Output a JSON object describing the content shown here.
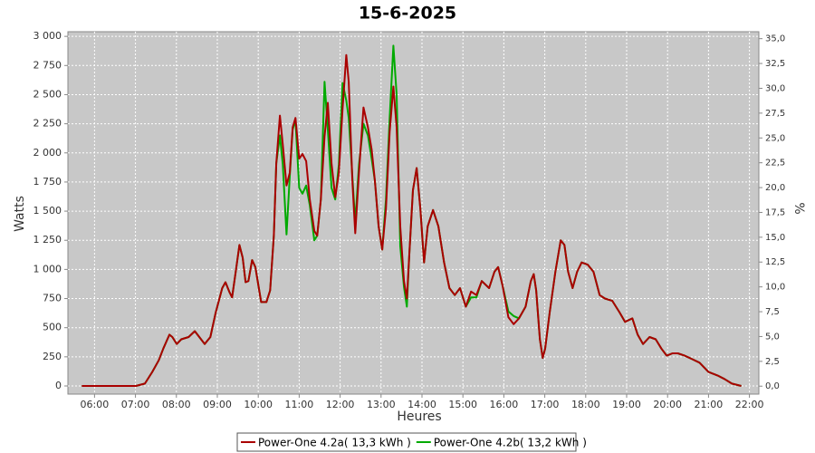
{
  "chart_data": {
    "type": "line",
    "title": "15-6-2025",
    "xlabel": "Heures",
    "ylabel": "Watts",
    "y2label": "%",
    "xlim": [
      5.35,
      22.23
    ],
    "ylim": [
      -70,
      3040
    ],
    "y2lim": [
      -0.8,
      35.7
    ],
    "xticks": [
      {
        "value": 6,
        "label": "06:00"
      },
      {
        "value": 7,
        "label": "07:00"
      },
      {
        "value": 8,
        "label": "08:00"
      },
      {
        "value": 9,
        "label": "09:00"
      },
      {
        "value": 10,
        "label": "10:00"
      },
      {
        "value": 11,
        "label": "11:00"
      },
      {
        "value": 12,
        "label": "12:00"
      },
      {
        "value": 13,
        "label": "13:00"
      },
      {
        "value": 14,
        "label": "14:00"
      },
      {
        "value": 15,
        "label": "15:00"
      },
      {
        "value": 16,
        "label": "16:00"
      },
      {
        "value": 17,
        "label": "17:00"
      },
      {
        "value": 18,
        "label": "18:00"
      },
      {
        "value": 19,
        "label": "19:00"
      },
      {
        "value": 20,
        "label": "20:00"
      },
      {
        "value": 21,
        "label": "21:00"
      },
      {
        "value": 22,
        "label": "22:00"
      }
    ],
    "yticks": [
      0,
      250,
      500,
      750,
      {
        "value": 1000,
        "label": "1 000"
      },
      {
        "value": 1250,
        "label": "1 250"
      },
      {
        "value": 1500,
        "label": "1 500"
      },
      {
        "value": 1750,
        "label": "1 750"
      },
      {
        "value": 2000,
        "label": "2 000"
      },
      {
        "value": 2250,
        "label": "2 250"
      },
      {
        "value": 2500,
        "label": "2 500"
      },
      {
        "value": 2750,
        "label": "2 750"
      },
      {
        "value": 3000,
        "label": "3 000"
      }
    ],
    "y2ticks": [
      {
        "value": 0,
        "label": "0,0"
      },
      {
        "value": 2.5,
        "label": "2,5"
      },
      {
        "value": 5,
        "label": "5,0"
      },
      {
        "value": 7.5,
        "label": "7,5"
      },
      {
        "value": 10,
        "label": "10,0"
      },
      {
        "value": 12.5,
        "label": "12,5"
      },
      {
        "value": 15,
        "label": "15,0"
      },
      {
        "value": 17.5,
        "label": "17,5"
      },
      {
        "value": 20,
        "label": "20,0"
      },
      {
        "value": 22.5,
        "label": "22,5"
      },
      {
        "value": 25,
        "label": "25,0"
      },
      {
        "value": 27.5,
        "label": "27,5"
      },
      {
        "value": 30,
        "label": "30,0"
      },
      {
        "value": 32.5,
        "label": "32,5"
      },
      {
        "value": 35,
        "label": "35,0"
      }
    ],
    "grid": true,
    "legend": "bottom",
    "x": [
      5.69,
      7.01,
      7.23,
      7.41,
      7.57,
      7.68,
      7.83,
      7.9,
      8.01,
      8.12,
      8.3,
      8.45,
      8.56,
      8.69,
      8.83,
      8.96,
      9.12,
      9.2,
      9.29,
      9.36,
      9.45,
      9.54,
      9.62,
      9.69,
      9.76,
      9.85,
      9.93,
      10.07,
      10.2,
      10.29,
      10.38,
      10.44,
      10.53,
      10.6,
      10.69,
      10.77,
      10.84,
      10.91,
      11.0,
      11.08,
      11.17,
      11.26,
      11.37,
      11.44,
      11.53,
      11.62,
      11.7,
      11.79,
      11.88,
      11.97,
      12.06,
      12.15,
      12.21,
      12.3,
      12.37,
      12.46,
      12.57,
      12.68,
      12.77,
      12.85,
      12.94,
      13.03,
      13.12,
      13.21,
      13.3,
      13.38,
      13.47,
      13.56,
      13.63,
      13.69,
      13.78,
      13.87,
      13.96,
      14.05,
      14.14,
      14.27,
      14.4,
      14.54,
      14.67,
      14.8,
      14.93,
      15.07,
      15.2,
      15.33,
      15.46,
      15.64,
      15.77,
      15.86,
      15.97,
      16.11,
      16.24,
      16.37,
      16.53,
      16.66,
      16.73,
      16.79,
      16.88,
      16.95,
      17.01,
      17.12,
      17.26,
      17.39,
      17.48,
      17.57,
      17.68,
      17.79,
      17.9,
      18.05,
      18.19,
      18.34,
      18.47,
      18.65,
      18.83,
      18.96,
      19.14,
      19.27,
      19.4,
      19.56,
      19.71,
      19.85,
      19.98,
      20.12,
      20.25,
      20.42,
      20.6,
      20.78,
      21.0,
      21.22,
      21.39,
      21.57,
      21.8
    ],
    "series": [
      {
        "name": "Power-One 4.2a( 13,3 kWh )",
        "color": "#aa0000",
        "values": [
          0,
          0,
          20,
          120,
          220,
          320,
          440,
          420,
          360,
          400,
          420,
          470,
          420,
          360,
          420,
          630,
          840,
          890,
          810,
          760,
          980,
          1210,
          1100,
          890,
          900,
          1080,
          1020,
          720,
          720,
          820,
          1290,
          1910,
          2320,
          2070,
          1720,
          1830,
          2220,
          2300,
          1950,
          1990,
          1930,
          1600,
          1330,
          1290,
          1600,
          2140,
          2430,
          1910,
          1620,
          1830,
          2380,
          2840,
          2610,
          1760,
          1310,
          1830,
          2390,
          2220,
          2030,
          1760,
          1370,
          1170,
          1520,
          2180,
          2570,
          2220,
          1370,
          900,
          750,
          1130,
          1680,
          1870,
          1520,
          1060,
          1370,
          1510,
          1370,
          1060,
          840,
          780,
          840,
          680,
          810,
          780,
          900,
          840,
          980,
          1020,
          860,
          590,
          530,
          580,
          680,
          900,
          960,
          820,
          400,
          240,
          320,
          630,
          980,
          1250,
          1210,
          980,
          840,
          980,
          1060,
          1040,
          980,
          780,
          750,
          730,
          630,
          550,
          580,
          440,
          360,
          420,
          400,
          320,
          260,
          280,
          280,
          260,
          230,
          200,
          120,
          90,
          60,
          20,
          0
        ]
      },
      {
        "name": "Power-One 4.2b( 13,2 kWh )",
        "color": "#00aa00",
        "values": [
          0,
          0,
          20,
          120,
          220,
          320,
          440,
          420,
          360,
          400,
          420,
          470,
          420,
          360,
          420,
          630,
          840,
          890,
          810,
          760,
          980,
          1210,
          1100,
          890,
          900,
          1080,
          1020,
          720,
          720,
          820,
          1290,
          1910,
          2150,
          1900,
          1300,
          1800,
          2200,
          2280,
          1700,
          1650,
          1720,
          1550,
          1250,
          1290,
          1600,
          2610,
          2200,
          1700,
          1600,
          1900,
          2600,
          2450,
          2300,
          1800,
          1400,
          1900,
          2250,
          2150,
          1950,
          1760,
          1370,
          1170,
          1600,
          2300,
          2920,
          2500,
          1200,
          850,
          680,
          1130,
          1680,
          1870,
          1520,
          1060,
          1370,
          1510,
          1370,
          1060,
          840,
          780,
          840,
          680,
          760,
          760,
          900,
          840,
          980,
          1020,
          860,
          640,
          600,
          580,
          680,
          900,
          960,
          820,
          400,
          240,
          320,
          630,
          980,
          1250,
          1210,
          980,
          840,
          980,
          1060,
          1040,
          980,
          780,
          750,
          730,
          630,
          550,
          580,
          440,
          360,
          420,
          400,
          320,
          260,
          280,
          280,
          260,
          230,
          200,
          120,
          90,
          60,
          20,
          0
        ]
      }
    ]
  }
}
